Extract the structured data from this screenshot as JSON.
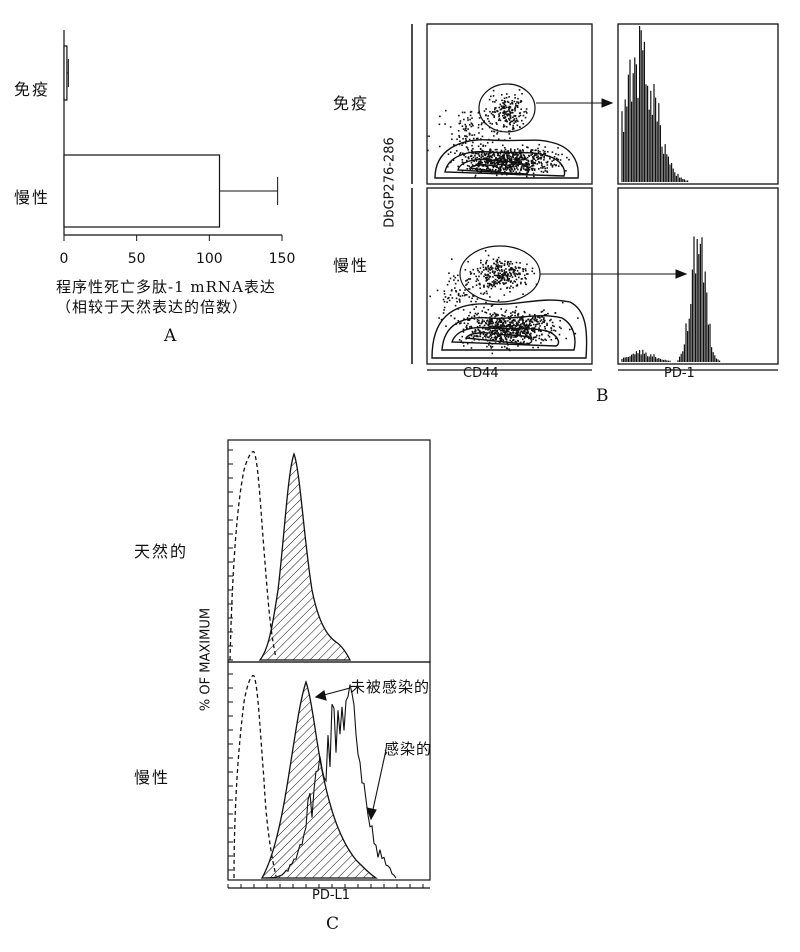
{
  "panel_a": {
    "letter": "A",
    "categories": [
      "免疫",
      "慢性"
    ],
    "xlabel_line1": "程序性死亡多肽-1 mRNA表达",
    "xlabel_line2": "（相较于天然表达的倍数）",
    "ticks": [
      "0",
      "50",
      "100",
      "150"
    ]
  },
  "panel_b": {
    "letter": "B",
    "row_labels": [
      "免疫",
      "慢性"
    ],
    "ylabel": "DbGP276-286",
    "xlabel_left": "CD44",
    "xlabel_right": "PD-1"
  },
  "panel_c": {
    "letter": "C",
    "row_labels": [
      "天然的",
      "慢性"
    ],
    "ylabel": "% OF MAXIMUM",
    "xlabel": "PD-L1",
    "annotation_uninfected": "未被感染的",
    "annotation_infected": "感染的"
  },
  "chart_data": [
    {
      "type": "bar",
      "orientation": "horizontal",
      "categories": [
        "免疫",
        "慢性"
      ],
      "values": [
        2,
        107
      ],
      "error": [
        1,
        40
      ],
      "xlabel": "程序性死亡多肽-1 mRNA表达（相较于天然表达的倍数）",
      "xlim": [
        0,
        150
      ],
      "xticks": [
        0,
        50,
        100,
        150
      ]
    }
  ]
}
